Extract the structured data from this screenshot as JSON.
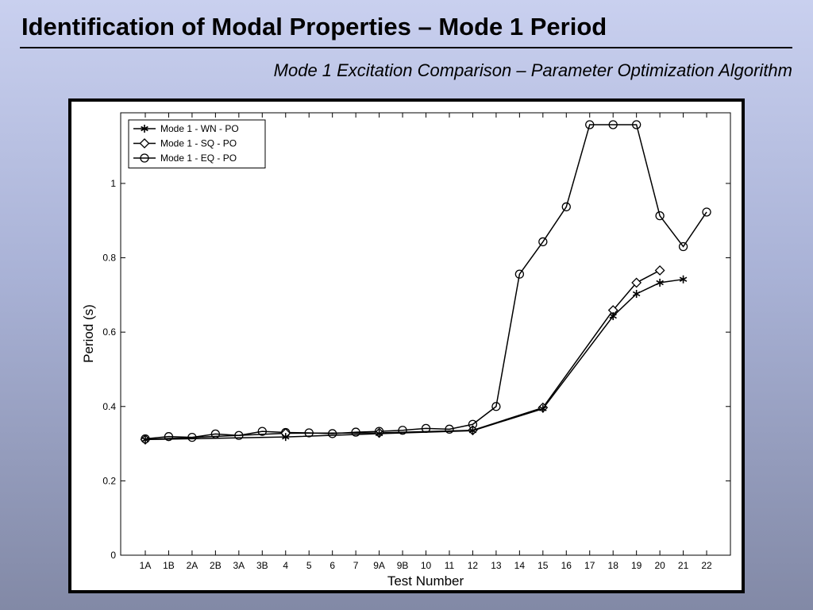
{
  "slide": {
    "title": "Identification of Modal Properties – Mode 1 Period",
    "subtitle": "Mode 1 Excitation Comparison – Parameter Optimization Algorithm"
  },
  "chart_data": {
    "type": "line",
    "xlabel": "Test Number",
    "ylabel": "Period (s)",
    "categories": [
      "1A",
      "1B",
      "2A",
      "2B",
      "3A",
      "3B",
      "4",
      "5",
      "6",
      "7",
      "9A",
      "9B",
      "10",
      "11",
      "12",
      "13",
      "14",
      "15",
      "16",
      "17",
      "18",
      "19",
      "20",
      "21",
      "22"
    ],
    "ylim": [
      0,
      1.19
    ],
    "yticks": [
      0,
      0.2,
      0.4,
      0.6,
      0.8,
      1
    ],
    "ytick_labels": [
      "0",
      "0.2",
      "0.4",
      "0.6",
      "0.8",
      "1"
    ],
    "grid": false,
    "legend_position": "top-left",
    "series": [
      {
        "name": "Mode 1 - WN - PO",
        "marker": "star",
        "points": [
          [
            "1A",
            0.311
          ],
          [
            "4",
            0.318
          ],
          [
            "9A",
            0.327
          ],
          [
            "12",
            0.335
          ],
          [
            "15",
            0.394
          ],
          [
            "18",
            0.643
          ],
          [
            "19",
            0.703
          ],
          [
            "20",
            0.733
          ],
          [
            "21",
            0.742
          ]
        ]
      },
      {
        "name": "Mode 1 - SQ - PO",
        "marker": "diamond",
        "points": [
          [
            "1A",
            0.311
          ],
          [
            "4",
            0.328
          ],
          [
            "9A",
            0.329
          ],
          [
            "12",
            0.336
          ],
          [
            "15",
            0.397
          ],
          [
            "18",
            0.659
          ],
          [
            "19",
            0.733
          ],
          [
            "20",
            0.766
          ]
        ]
      },
      {
        "name": "Mode 1 - EQ - PO",
        "marker": "circle",
        "points": [
          [
            "1A",
            0.313
          ],
          [
            "1B",
            0.319
          ],
          [
            "2A",
            0.317
          ],
          [
            "2B",
            0.326
          ],
          [
            "3A",
            0.322
          ],
          [
            "3B",
            0.333
          ],
          [
            "4",
            0.33
          ],
          [
            "5",
            0.329
          ],
          [
            "6",
            0.327
          ],
          [
            "7",
            0.331
          ],
          [
            "9A",
            0.333
          ],
          [
            "9B",
            0.336
          ],
          [
            "10",
            0.341
          ],
          [
            "11",
            0.339
          ],
          [
            "12",
            0.352
          ],
          [
            "13",
            0.4
          ],
          [
            "14",
            0.756
          ],
          [
            "15",
            0.843
          ],
          [
            "16",
            0.937
          ],
          [
            "17",
            1.158
          ],
          [
            "18",
            1.158
          ],
          [
            "19",
            1.158
          ],
          [
            "20",
            0.913
          ],
          [
            "21",
            0.83
          ],
          [
            "22",
            0.923
          ]
        ]
      }
    ]
  }
}
